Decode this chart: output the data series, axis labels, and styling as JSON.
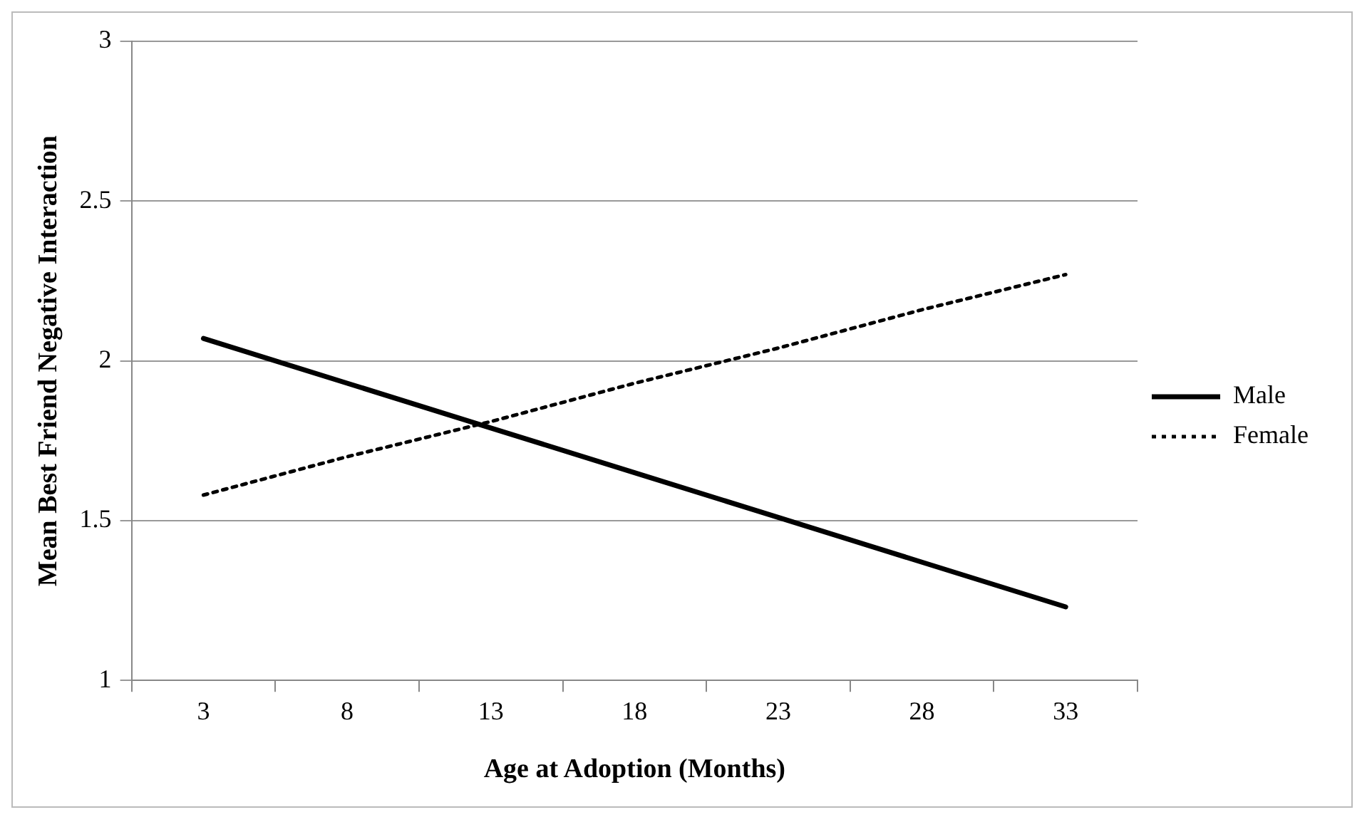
{
  "chart_data": {
    "type": "line",
    "xlabel": "Age at Adoption (Months)",
    "ylabel": "Mean Best Friend Negative Interaction",
    "categories": [
      "3",
      "8",
      "13",
      "18",
      "23",
      "28",
      "33"
    ],
    "series": [
      {
        "name": "Male",
        "color": "#000000",
        "line_style": "solid",
        "values": [
          2.07,
          1.93,
          1.79,
          1.65,
          1.51,
          1.37,
          1.23
        ]
      },
      {
        "name": "Female",
        "color": "#000000",
        "line_style": "dotted",
        "values": [
          1.58,
          1.7,
          1.81,
          1.93,
          2.04,
          2.16,
          2.27
        ]
      }
    ],
    "ylim": [
      1,
      3
    ],
    "yticks": [
      1,
      1.5,
      2,
      2.5,
      3
    ],
    "grid": "y",
    "legend": "right",
    "marker": "none"
  }
}
